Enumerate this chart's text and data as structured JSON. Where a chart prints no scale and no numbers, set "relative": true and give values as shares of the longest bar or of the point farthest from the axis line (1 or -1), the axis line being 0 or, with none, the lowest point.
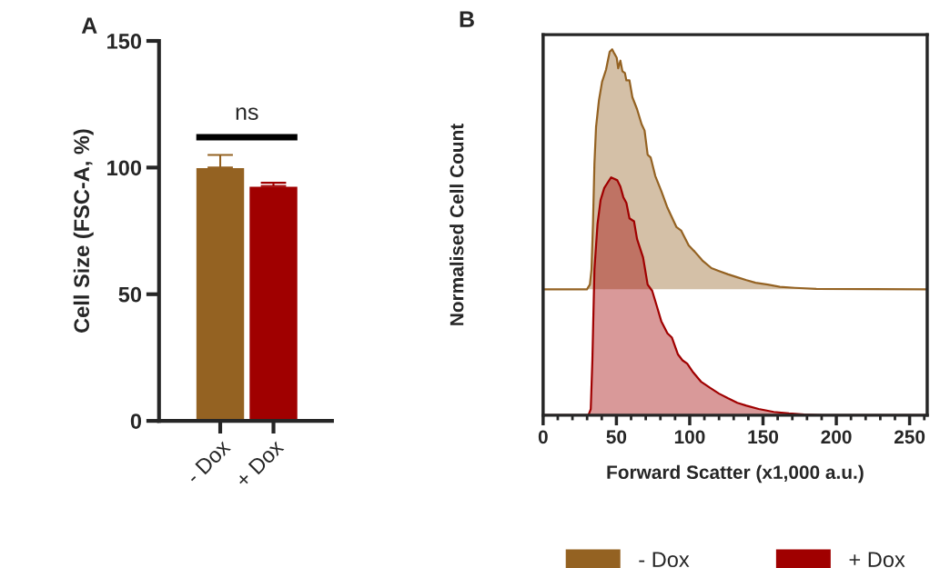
{
  "chart_data": [
    {
      "type": "bar",
      "title": "A",
      "ylabel": "Cell Size (FSC-A, %)",
      "categories": [
        "- Dox",
        "+ Dox"
      ],
      "values": [
        100,
        92.7
      ],
      "errors": [
        5,
        1.3
      ],
      "colors": [
        "#946222",
        "#a00000"
      ],
      "ylim": [
        0,
        150
      ],
      "yticks": [
        0,
        50,
        100,
        150
      ],
      "annotations": [
        "ns"
      ],
      "grid": false,
      "legend": false
    },
    {
      "type": "area",
      "title": "B",
      "xlabel": "Forward Scatter (x1,000 a.u.)",
      "ylabel": "Normalised Cell Count",
      "relative": true,
      "legend": "bottom",
      "grid": false,
      "xlim": [
        0,
        262
      ],
      "xticks": [
        0,
        {
          "value": 10,
          "label": null
        },
        {
          "value": 20,
          "label": null
        },
        {
          "value": 30,
          "label": null
        },
        {
          "value": 40,
          "label": null
        },
        50,
        {
          "value": 60,
          "label": null
        },
        {
          "value": 70,
          "label": null
        },
        {
          "value": 80,
          "label": null
        },
        {
          "value": 90,
          "label": null
        },
        100,
        {
          "value": 110,
          "label": null
        },
        {
          "value": 120,
          "label": null
        },
        {
          "value": 130,
          "label": null
        },
        {
          "value": 140,
          "label": null
        },
        150,
        {
          "value": 160,
          "label": null
        },
        {
          "value": 170,
          "label": null
        },
        {
          "value": 180,
          "label": null
        },
        {
          "value": 190,
          "label": null
        },
        200,
        {
          "value": 210,
          "label": null
        },
        {
          "value": 220,
          "label": null
        },
        {
          "value": 230,
          "label": null
        },
        {
          "value": 240,
          "label": null
        },
        250,
        {
          "value": 260,
          "label": null
        }
      ],
      "series": [
        {
          "name": "- Dox",
          "color": "#946222",
          "x": [
            0,
            29.9,
            31.9,
            33.0,
            34.0,
            35.0,
            36.1,
            38.1,
            40.2,
            42.9,
            45.4,
            47.1,
            48.5,
            50.2,
            51.2,
            52.7,
            54.1,
            55.8,
            56.8,
            58.9,
            60.9,
            64.1,
            67.2,
            69.2,
            71.3,
            73.4,
            76.5,
            80.6,
            84.8,
            91.0,
            94.1,
            99.3,
            103.4,
            108.6,
            114.8,
            120.0,
            126.2,
            132.5,
            138.7,
            144.9,
            153.2,
            161.5,
            171.8,
            186.4,
            262
          ],
          "values": [
            0.344,
            0.344,
            0.357,
            0.398,
            0.522,
            0.687,
            0.787,
            0.861,
            0.911,
            0.944,
            0.993,
            1.0,
            0.989,
            0.977,
            0.948,
            0.969,
            0.94,
            0.935,
            0.915,
            0.915,
            0.869,
            0.836,
            0.795,
            0.778,
            0.712,
            0.704,
            0.654,
            0.613,
            0.567,
            0.514,
            0.505,
            0.464,
            0.447,
            0.423,
            0.402,
            0.394,
            0.385,
            0.377,
            0.369,
            0.362,
            0.357,
            0.351,
            0.348,
            0.345,
            0.344
          ]
        },
        {
          "name": "+ Dox",
          "color": "#a00000",
          "x": [
            0,
            30.9,
            32.5,
            33.6,
            35.0,
            37.1,
            39.2,
            41.7,
            44.4,
            46.4,
            48.5,
            50.6,
            52.7,
            54.7,
            56.8,
            58.9,
            62.0,
            64.1,
            68.2,
            71.3,
            74.4,
            77.5,
            80.6,
            84.8,
            87.9,
            92.0,
            95.1,
            98.3,
            102.4,
            107.6,
            113.8,
            120.0,
            126.2,
            132.5,
            138.7,
            147.0,
            157.3,
            167.7,
            178.1,
            190.5,
            262
          ],
          "values": [
            0,
            0,
            0.017,
            0.15,
            0.398,
            0.522,
            0.588,
            0.621,
            0.638,
            0.65,
            0.646,
            0.642,
            0.625,
            0.596,
            0.58,
            0.538,
            0.53,
            0.481,
            0.431,
            0.357,
            0.34,
            0.299,
            0.257,
            0.224,
            0.212,
            0.166,
            0.15,
            0.141,
            0.117,
            0.092,
            0.075,
            0.059,
            0.046,
            0.034,
            0.026,
            0.017,
            0.009,
            0.005,
            0.002,
            0,
            0
          ]
        }
      ]
    }
  ]
}
